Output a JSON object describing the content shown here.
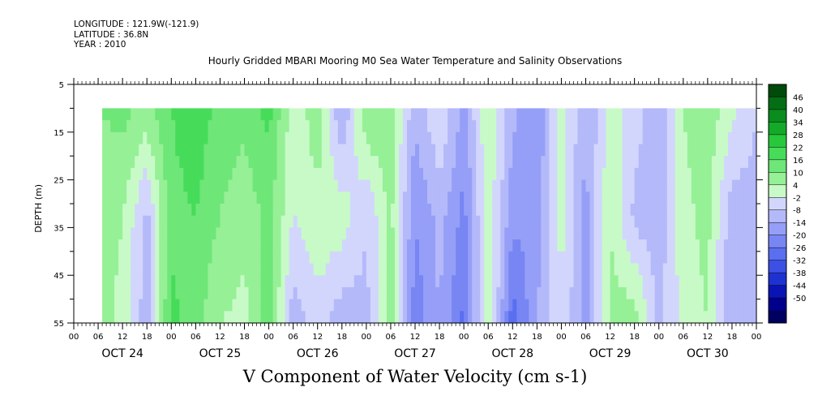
{
  "header": {
    "longitude": "LONGITUDE : 121.9W(-121.9)",
    "latitude": "LATITUDE : 36.8N",
    "year": "YEAR : 2010"
  },
  "title": "Hourly Gridded MBARI Mooring M0 Sea Water Temperature and Salinity Observations",
  "bottom_title": "V Component of Water Velocity (cm s-1)",
  "chart_data": {
    "type": "heatmap",
    "title": "Hourly Gridded MBARI Mooring M0 Sea Water Temperature and Salinity Observations",
    "ylabel": "DEPTH (m)",
    "xlabel": "",
    "colorbar_label": "V Component of Water Velocity (cm s-1)",
    "y_reversed": true,
    "ylim": [
      5,
      55
    ],
    "y_ticks": [
      5,
      15,
      25,
      35,
      45,
      55
    ],
    "data_depth_range": [
      10,
      55
    ],
    "x_start": "2010-10-24 00:00",
    "x_end": "2010-10-31 00:00",
    "data_start": "2010-10-24 07:00",
    "x_hour_ticks": [
      "00",
      "06",
      "12",
      "18",
      "00",
      "06",
      "12",
      "18",
      "00",
      "06",
      "12",
      "18",
      "00",
      "06",
      "12",
      "18",
      "00",
      "06",
      "12",
      "18",
      "00",
      "06",
      "12",
      "18",
      "00",
      "06",
      "12",
      "18",
      "00"
    ],
    "x_day_labels": [
      "OCT 24",
      "OCT 25",
      "OCT 26",
      "OCT 27",
      "OCT 28",
      "OCT 29",
      "OCT 30"
    ],
    "colorbar_levels": [
      -50,
      -44,
      -38,
      -32,
      -26,
      -20,
      -14,
      -8,
      -2,
      4,
      10,
      16,
      22,
      28,
      34,
      40,
      46
    ],
    "colorbar_colors": [
      "#000060",
      "#00008c",
      "#0a14b4",
      "#1e32d2",
      "#3c50e6",
      "#5a6ef0",
      "#7886f4",
      "#969ff7",
      "#b4b9fa",
      "#d2d6fc",
      "#c8fac8",
      "#96f096",
      "#6ee678",
      "#46dc5a",
      "#28c83c",
      "#14aa28",
      "#0a8c1e",
      "#046e14",
      "#004a0a"
    ],
    "colorbar_labels": [
      "46",
      "40",
      "34",
      "28",
      "22",
      "16",
      "10",
      "4",
      "-2",
      "-8",
      "-14",
      "-20",
      "-26",
      "-32",
      "-38",
      "-44",
      "-50"
    ],
    "profiles": [
      {
        "time": "2010-10-24 07:00",
        "top": 16,
        "mid": 14,
        "bottom": 12
      },
      {
        "time": "2010-10-24 12:00",
        "top": 18,
        "mid": 10,
        "bottom": 8
      },
      {
        "time": "2010-10-24 18:00",
        "top": 14,
        "mid": -4,
        "bottom": -6
      },
      {
        "time": "2010-10-25 00:00",
        "top": 22,
        "mid": 20,
        "bottom": 24
      },
      {
        "time": "2010-10-25 06:00",
        "top": 26,
        "mid": 22,
        "bottom": 18
      },
      {
        "time": "2010-10-25 12:00",
        "top": 20,
        "mid": 16,
        "bottom": 10
      },
      {
        "time": "2010-10-25 18:00",
        "top": 18,
        "mid": 12,
        "bottom": 8
      },
      {
        "time": "2010-10-26 00:00",
        "top": 24,
        "mid": 18,
        "bottom": 20
      },
      {
        "time": "2010-10-26 06:00",
        "top": 6,
        "mid": 4,
        "bottom": -6
      },
      {
        "time": "2010-10-26 12:00",
        "top": 14,
        "mid": 8,
        "bottom": 2
      },
      {
        "time": "2010-10-26 18:00",
        "top": -10,
        "mid": 8,
        "bottom": -6
      },
      {
        "time": "2010-10-27 00:00",
        "top": 16,
        "mid": -2,
        "bottom": -4
      },
      {
        "time": "2010-10-27 06:00",
        "top": 14,
        "mid": 12,
        "bottom": 14
      },
      {
        "time": "2010-10-27 12:00",
        "top": -6,
        "mid": -14,
        "bottom": -18
      },
      {
        "time": "2010-10-27 18:00",
        "top": 4,
        "mid": -6,
        "bottom": -8
      },
      {
        "time": "2010-10-28 00:00",
        "top": -10,
        "mid": -16,
        "bottom": -22
      },
      {
        "time": "2010-10-28 06:00",
        "top": 10,
        "mid": 8,
        "bottom": 12
      },
      {
        "time": "2010-10-28 12:00",
        "top": -6,
        "mid": -12,
        "bottom": -24
      },
      {
        "time": "2010-10-28 18:00",
        "top": -14,
        "mid": -12,
        "bottom": -8
      },
      {
        "time": "2010-10-29 00:00",
        "top": 8,
        "mid": 6,
        "bottom": 4
      },
      {
        "time": "2010-10-29 06:00",
        "top": -8,
        "mid": -10,
        "bottom": -12
      },
      {
        "time": "2010-10-29 12:00",
        "top": 6,
        "mid": 10,
        "bottom": 12
      },
      {
        "time": "2010-10-29 18:00",
        "top": 2,
        "mid": -4,
        "bottom": 14
      },
      {
        "time": "2010-10-30 00:00",
        "top": -8,
        "mid": -6,
        "bottom": -4
      },
      {
        "time": "2010-10-30 06:00",
        "top": 10,
        "mid": 8,
        "bottom": 6
      },
      {
        "time": "2010-10-30 12:00",
        "top": 14,
        "mid": 12,
        "bottom": 10
      },
      {
        "time": "2010-10-30 18:00",
        "top": 6,
        "mid": -6,
        "bottom": -8
      },
      {
        "time": "2010-10-31 00:00",
        "top": -2,
        "mid": -4,
        "bottom": -6
      }
    ]
  }
}
